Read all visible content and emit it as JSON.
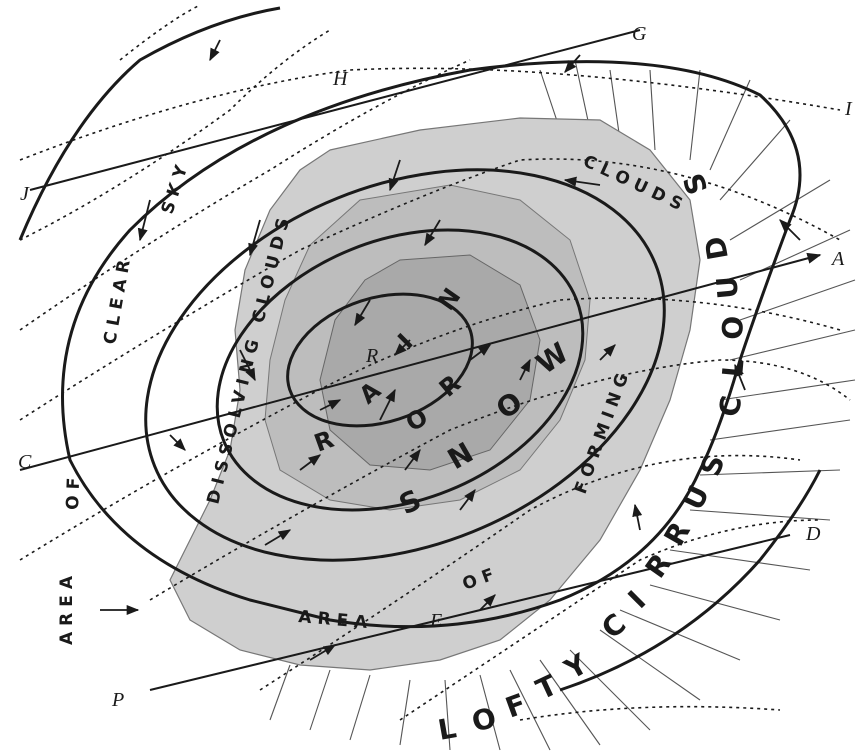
{
  "figure": {
    "point_labels": {
      "G": "G",
      "H": "H",
      "I": "I",
      "J": "J",
      "A": "A",
      "C": "C",
      "D": "D",
      "E": "E",
      "P": "P",
      "R": "R"
    },
    "region_labels": {
      "clear_sky": [
        "SKY",
        "CLEAR",
        "OF",
        "AREA"
      ],
      "dissolving_clouds": "DISSOLVING CLOUDS",
      "forming_clouds": [
        "FORMING",
        "CLOUDS",
        "OF",
        "AREA"
      ],
      "rain_or_snow": [
        "R",
        "A",
        "I",
        "N",
        "O",
        "R",
        "S",
        "N",
        "O",
        "W"
      ],
      "lofty_cirrus_clouds": [
        "L",
        "O",
        "F",
        "T",
        "Y",
        "C",
        "I",
        "R",
        "R",
        "U",
        "S",
        "C",
        "L",
        "O",
        "U",
        "D",
        "S"
      ]
    }
  }
}
